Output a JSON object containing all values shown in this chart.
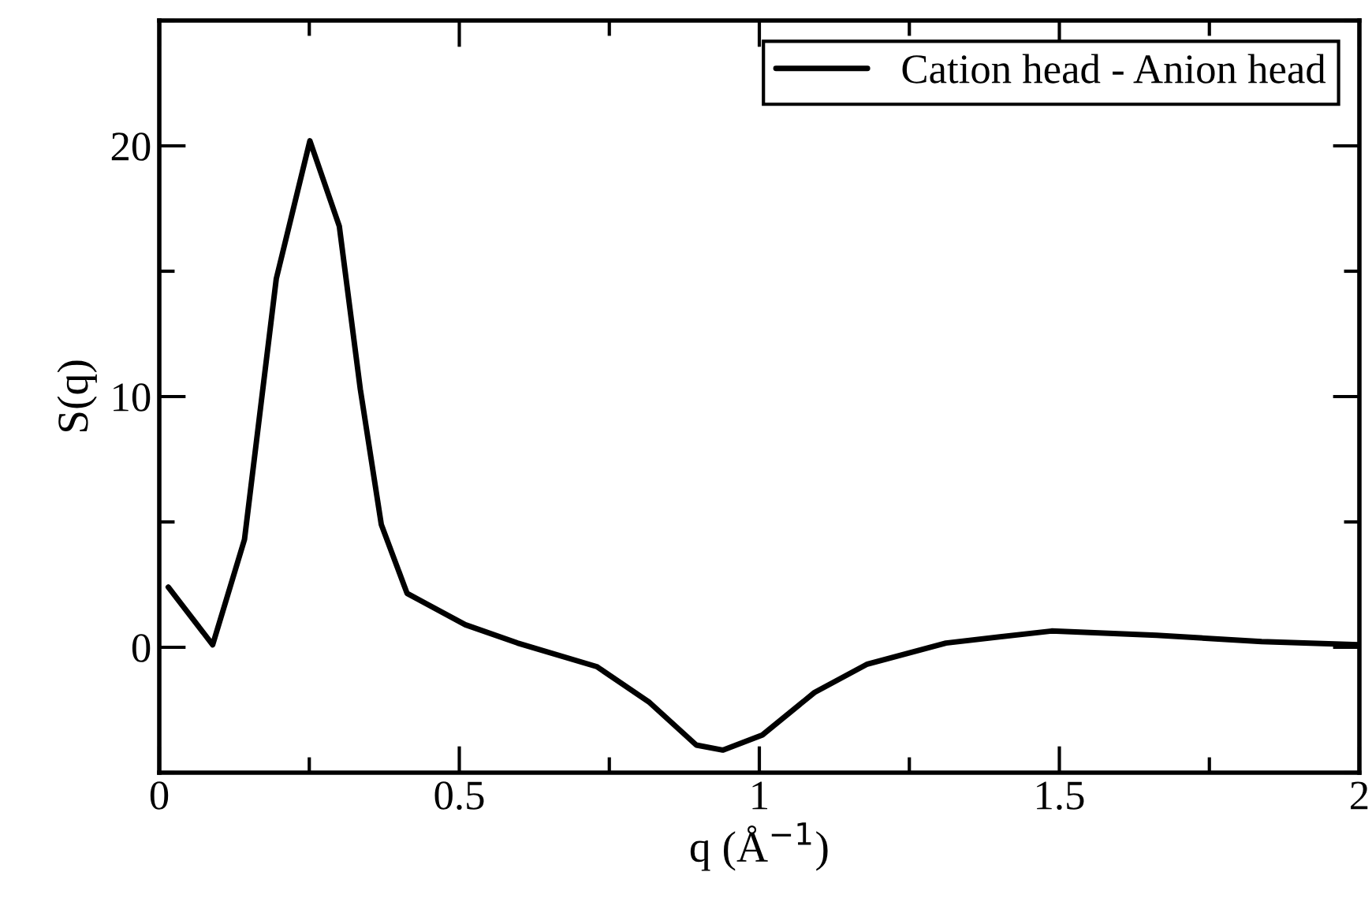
{
  "chart_data": {
    "type": "line",
    "xlabel": "q (Å$^{−1}$)",
    "ylabel": "S(q)",
    "xlim": [
      0,
      2
    ],
    "ylim": [
      -5,
      25
    ],
    "xticks": [
      0,
      {
        "value": 0.25,
        "label": null
      },
      0.5,
      {
        "value": 0.75,
        "label": null
      },
      1,
      {
        "value": 1.25,
        "label": null
      },
      1.5,
      {
        "value": 1.75,
        "label": null
      },
      2
    ],
    "yticks": [
      {
        "value": -5,
        "label": null
      },
      0,
      {
        "value": 5,
        "label": null
      },
      10,
      {
        "value": 15,
        "label": null
      },
      20,
      {
        "value": 25,
        "label": null
      }
    ],
    "legend": "top right",
    "grid": false,
    "marker": "none",
    "line_style": "solid",
    "series": [
      {
        "name": "Cation head - Anion head",
        "color": "#000000",
        "x": [
          0.015,
          0.089,
          0.142,
          0.195,
          0.251,
          0.3,
          0.335,
          0.37,
          0.413,
          0.51,
          0.597,
          0.729,
          0.817,
          0.895,
          0.939,
          1.005,
          1.092,
          1.18,
          1.311,
          1.487,
          1.662,
          1.837,
          1.999
        ],
        "values": [
          2.4,
          0.1,
          4.3,
          14.7,
          20.2,
          16.8,
          10.3,
          4.9,
          2.15,
          0.9,
          0.17,
          -0.77,
          -2.2,
          -3.9,
          -4.1,
          -3.5,
          -1.8,
          -0.67,
          0.17,
          0.65,
          0.48,
          0.23,
          0.1
        ]
      }
    ]
  }
}
